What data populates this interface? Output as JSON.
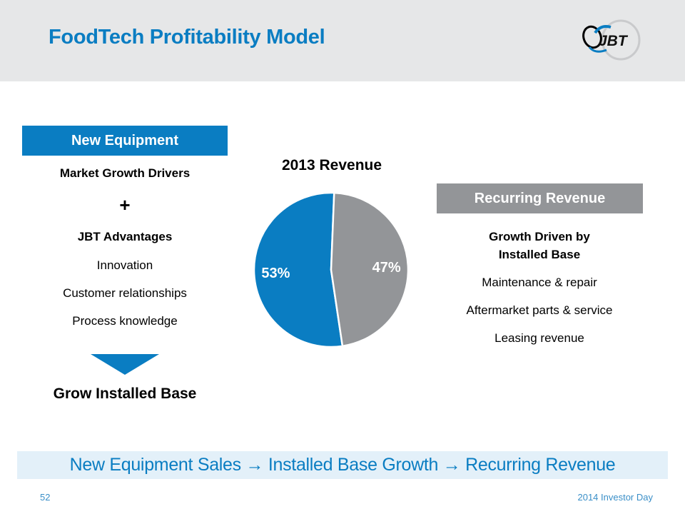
{
  "header": {
    "title": "FoodTech Profitability Model",
    "logo_text": "JBT"
  },
  "left_column": {
    "box_label": "New Equipment",
    "heading1": "Market Growth Drivers",
    "plus": "+",
    "heading2": "JBT Advantages",
    "items": [
      "Innovation",
      "Customer relationships",
      "Process knowledge"
    ],
    "arrow_icon": "down-triangle-arrow",
    "result": "Grow Installed Base"
  },
  "right_column": {
    "box_label": "Recurring Revenue",
    "heading_line1": "Growth Driven by",
    "heading_line2": "Installed Base",
    "items": [
      "Maintenance & repair",
      "Aftermarket parts & service",
      "Leasing revenue"
    ]
  },
  "colors": {
    "brand_blue": "#0a7dc2",
    "gray": "#939598",
    "banner_bg": "#e3f0f9"
  },
  "chart_data": {
    "type": "pie",
    "title": "2013 Revenue",
    "categories": [
      "New Equipment",
      "Recurring Revenue"
    ],
    "values": [
      53,
      47
    ],
    "labels": [
      "53%",
      "47%"
    ],
    "colors": [
      "#0a7dc2",
      "#939598"
    ],
    "legend": "none"
  },
  "banner": {
    "text": "New Equipment Sales → Installed Base Growth → Recurring Revenue"
  },
  "footer": {
    "page_number": "52",
    "event": "2014 Investor Day"
  }
}
